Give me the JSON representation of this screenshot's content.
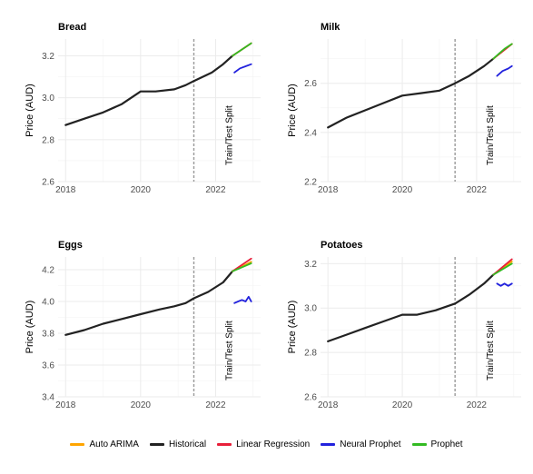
{
  "chart_data": [
    {
      "type": "line",
      "title": "Bread",
      "ylabel": "Price (AUD)",
      "xlim": [
        2017.8,
        2023.2
      ],
      "ylim": [
        2.6,
        3.28
      ],
      "yticks": [
        2.6,
        2.8,
        3.0,
        3.2
      ],
      "xticks": [
        2018,
        2020,
        2022
      ],
      "split_x": 2021.42,
      "split_label": "Train/Test Split",
      "series": [
        {
          "name": "Historical",
          "x": [
            2018.0,
            2018.5,
            2019.0,
            2019.5,
            2020.0,
            2020.4,
            2020.9,
            2021.2,
            2021.42,
            2021.9,
            2022.2,
            2022.45
          ],
          "y": [
            2.87,
            2.9,
            2.93,
            2.97,
            3.03,
            3.03,
            3.04,
            3.06,
            3.08,
            3.12,
            3.16,
            3.2
          ]
        },
        {
          "name": "Auto ARIMA",
          "x": [
            2022.45,
            2022.95
          ],
          "y": [
            3.2,
            3.26
          ]
        },
        {
          "name": "Linear Regression",
          "x": [
            2022.45,
            2022.95
          ],
          "y": [
            3.2,
            3.26
          ]
        },
        {
          "name": "Neural Prophet",
          "x": [
            2022.5,
            2022.65,
            2022.8,
            2022.95
          ],
          "y": [
            3.12,
            3.14,
            3.15,
            3.16
          ]
        },
        {
          "name": "Prophet",
          "x": [
            2022.45,
            2022.95
          ],
          "y": [
            3.2,
            3.26
          ]
        }
      ]
    },
    {
      "type": "line",
      "title": "Milk",
      "ylabel": "Price (AUD)",
      "xlim": [
        2017.8,
        2023.2
      ],
      "ylim": [
        2.2,
        2.78
      ],
      "yticks": [
        2.2,
        2.4,
        2.6
      ],
      "xticks": [
        2018,
        2020,
        2022
      ],
      "split_x": 2021.42,
      "split_label": "Train/Test Split",
      "series": [
        {
          "name": "Historical",
          "x": [
            2018.0,
            2018.5,
            2019.0,
            2019.5,
            2020.0,
            2020.5,
            2021.0,
            2021.42,
            2021.8,
            2022.2,
            2022.45
          ],
          "y": [
            2.42,
            2.46,
            2.49,
            2.52,
            2.55,
            2.56,
            2.57,
            2.6,
            2.63,
            2.67,
            2.7
          ]
        },
        {
          "name": "Auto ARIMA",
          "x": [
            2022.45,
            2022.95
          ],
          "y": [
            2.7,
            2.76
          ]
        },
        {
          "name": "Linear Regression",
          "x": [
            2022.45,
            2022.95
          ],
          "y": [
            2.7,
            2.76
          ]
        },
        {
          "name": "Neural Prophet",
          "x": [
            2022.55,
            2022.7,
            2022.85,
            2022.95
          ],
          "y": [
            2.63,
            2.65,
            2.66,
            2.67
          ]
        },
        {
          "name": "Prophet",
          "x": [
            2022.45,
            2022.6,
            2022.75,
            2022.95
          ],
          "y": [
            2.7,
            2.72,
            2.74,
            2.76
          ]
        }
      ]
    },
    {
      "type": "line",
      "title": "Eggs",
      "ylabel": "Price (AUD)",
      "xlim": [
        2017.8,
        2023.2
      ],
      "ylim": [
        3.4,
        4.28
      ],
      "yticks": [
        3.4,
        3.6,
        3.8,
        4.0,
        4.2
      ],
      "xticks": [
        2018,
        2020,
        2022
      ],
      "split_x": 2021.42,
      "split_label": "Train/Test Split",
      "series": [
        {
          "name": "Historical",
          "x": [
            2018.0,
            2018.5,
            2019.0,
            2019.5,
            2020.0,
            2020.5,
            2020.9,
            2021.2,
            2021.42,
            2021.8,
            2022.2,
            2022.45
          ],
          "y": [
            3.79,
            3.82,
            3.86,
            3.89,
            3.92,
            3.95,
            3.97,
            3.99,
            4.02,
            4.06,
            4.12,
            4.19
          ]
        },
        {
          "name": "Auto ARIMA",
          "x": [
            2022.45,
            2022.95
          ],
          "y": [
            4.19,
            4.25
          ]
        },
        {
          "name": "Linear Regression",
          "x": [
            2022.45,
            2022.95
          ],
          "y": [
            4.19,
            4.27
          ]
        },
        {
          "name": "Neural Prophet",
          "x": [
            2022.5,
            2022.6,
            2022.7,
            2022.8,
            2022.88,
            2022.95
          ],
          "y": [
            3.99,
            4.0,
            4.01,
            4.0,
            4.03,
            4.0
          ]
        },
        {
          "name": "Prophet",
          "x": [
            2022.45,
            2022.95
          ],
          "y": [
            4.19,
            4.24
          ]
        }
      ]
    },
    {
      "type": "line",
      "title": "Potatoes",
      "ylabel": "Price (AUD)",
      "xlim": [
        2017.8,
        2023.2
      ],
      "ylim": [
        2.6,
        3.23
      ],
      "yticks": [
        2.6,
        2.8,
        3.0,
        3.2
      ],
      "xticks": [
        2018,
        2020,
        2022
      ],
      "split_x": 2021.42,
      "split_label": "Train/Test Split",
      "series": [
        {
          "name": "Historical",
          "x": [
            2018.0,
            2018.5,
            2019.0,
            2019.5,
            2020.0,
            2020.4,
            2020.9,
            2021.42,
            2021.8,
            2022.2,
            2022.45
          ],
          "y": [
            2.85,
            2.88,
            2.91,
            2.94,
            2.97,
            2.97,
            2.99,
            3.02,
            3.06,
            3.11,
            3.15
          ]
        },
        {
          "name": "Auto ARIMA",
          "x": [
            2022.45,
            2022.95
          ],
          "y": [
            3.15,
            3.21
          ]
        },
        {
          "name": "Linear Regression",
          "x": [
            2022.45,
            2022.95
          ],
          "y": [
            3.15,
            3.22
          ]
        },
        {
          "name": "Neural Prophet",
          "x": [
            2022.55,
            2022.65,
            2022.75,
            2022.85,
            2022.95
          ],
          "y": [
            3.11,
            3.1,
            3.11,
            3.1,
            3.11
          ]
        },
        {
          "name": "Prophet",
          "x": [
            2022.45,
            2022.95
          ],
          "y": [
            3.15,
            3.2
          ]
        }
      ]
    }
  ],
  "legend": {
    "items": [
      {
        "label": "Auto ARIMA",
        "color": "#ffa500"
      },
      {
        "label": "Historical",
        "color": "#222222"
      },
      {
        "label": "Linear Regression",
        "color": "#e8203a"
      },
      {
        "label": "Neural Prophet",
        "color": "#2222dd"
      },
      {
        "label": "Prophet",
        "color": "#33bb22"
      }
    ]
  },
  "colors": {
    "Auto ARIMA": "#ffa500",
    "Historical": "#222222",
    "Linear Regression": "#e8203a",
    "Neural Prophet": "#2222dd",
    "Prophet": "#33bb22",
    "grid": "#ebebeb",
    "split": "#999999"
  }
}
